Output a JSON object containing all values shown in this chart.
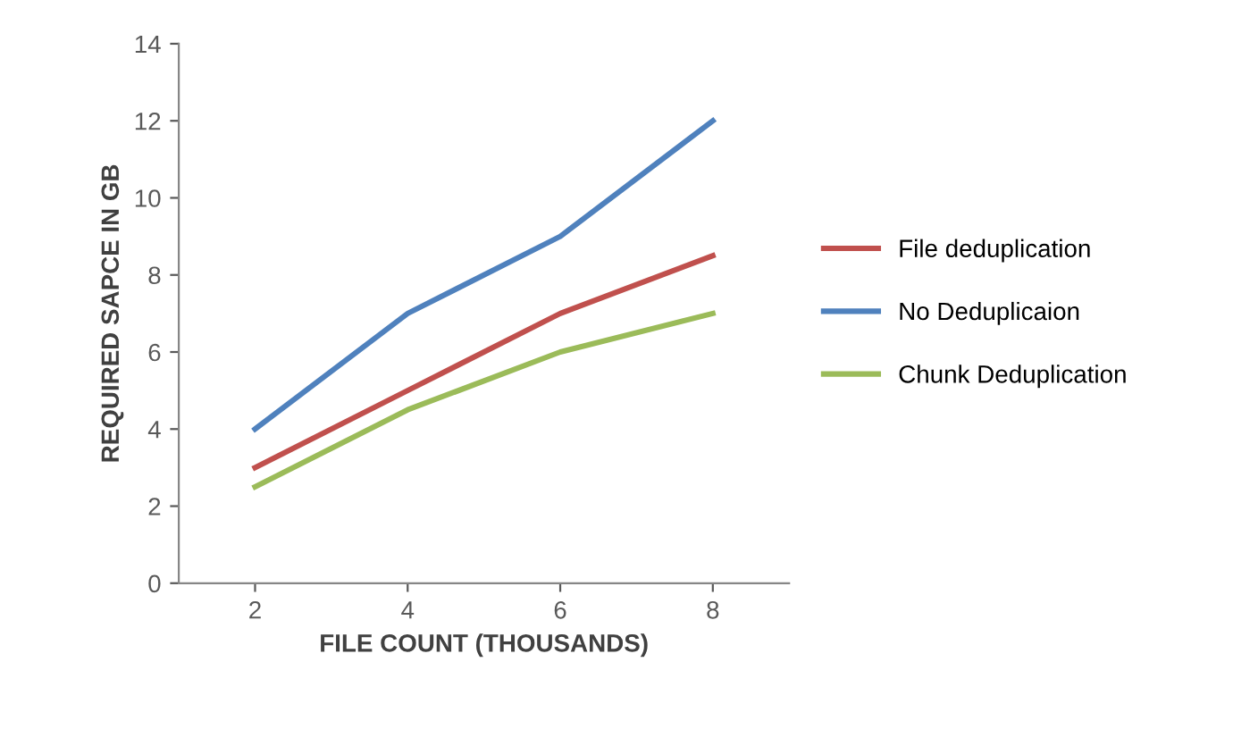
{
  "chart_data": {
    "type": "line",
    "xlabel": "FILE COUNT (THOUSANDS)",
    "ylabel": "REQUIRED SAPCE IN GB",
    "categories": [
      "2",
      "4",
      "6",
      "8"
    ],
    "series": [
      {
        "name": "File deduplication",
        "color": "#c0504d",
        "values": [
          3,
          5,
          7,
          8.5
        ]
      },
      {
        "name": "No Deduplicaion",
        "color": "#4f81bd",
        "values": [
          4,
          7,
          9,
          12
        ]
      },
      {
        "name": "Chunk Deduplication",
        "color": "#9bbb59",
        "values": [
          2.5,
          4.5,
          6,
          7
        ]
      }
    ],
    "ylim": [
      0,
      14
    ],
    "yticks": [
      0,
      2,
      4,
      6,
      8,
      10,
      12,
      14
    ],
    "grid": false,
    "legend": "right",
    "marker": "none",
    "line_style": "solid"
  }
}
